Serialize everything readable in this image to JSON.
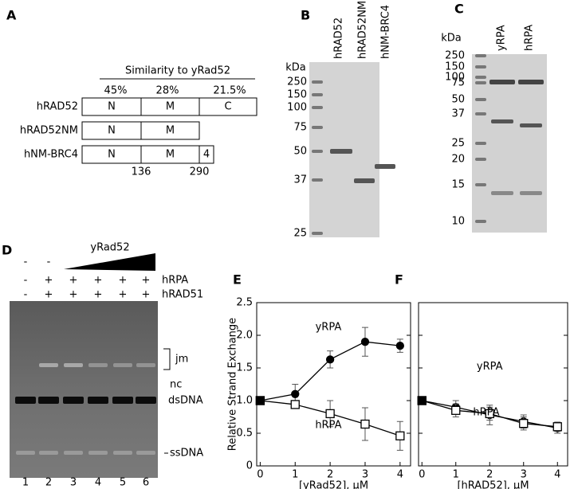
{
  "panels": {
    "a": {
      "label": "A",
      "header": "Similarity to yRad52",
      "similarity": [
        "45%",
        "28%",
        "21.5%"
      ],
      "constructs": [
        {
          "name": "hRAD52",
          "domains": [
            "N",
            "M",
            "C"
          ]
        },
        {
          "name": "hRAD52NM",
          "domains": [
            "N",
            "M"
          ]
        },
        {
          "name": "hNM-BRC4",
          "domains": [
            "N",
            "M",
            "4"
          ]
        }
      ],
      "positions": [
        "136",
        "290"
      ]
    },
    "b": {
      "label": "B",
      "unit": "kDa",
      "lanes": [
        "hRAD52",
        "hRAD52NM",
        "hNM-BRC4"
      ],
      "markers": [
        "250",
        "150",
        "100",
        "75",
        "50",
        "37",
        "25"
      ]
    },
    "c": {
      "label": "C",
      "unit": "kDa",
      "lanes": [
        "yRPA",
        "hRPA"
      ],
      "markers": [
        "250",
        "150",
        "100",
        "75",
        "50",
        "37",
        "25",
        "20",
        "15",
        "10"
      ]
    },
    "d": {
      "label": "D",
      "titrant": "yRad52",
      "titrant_signs": [
        "-",
        "-"
      ],
      "rows": [
        {
          "name": "hRPA",
          "signs": [
            "-",
            "+",
            "+",
            "+",
            "+",
            "+"
          ]
        },
        {
          "name": "hRAD51",
          "signs": [
            "-",
            "+",
            "+",
            "+",
            "+",
            "+"
          ]
        }
      ],
      "lanes": [
        "1",
        "2",
        "3",
        "4",
        "5",
        "6"
      ],
      "bands": [
        "jm",
        "nc",
        "dsDNA",
        "ssDNA"
      ]
    }
  },
  "chart_data": [
    {
      "type": "line",
      "label": "E",
      "y_label": "Relative Strand Exchange",
      "x_label": "[yRad52], μM",
      "x": [
        0,
        1,
        2,
        3,
        4
      ],
      "xlim": [
        -0.1,
        4.3
      ],
      "xticks": [
        0,
        1,
        2,
        3,
        4
      ],
      "ylim": [
        0,
        2.5
      ],
      "yticks": [
        0,
        0.5,
        {
          "value": 1,
          "label": "1.0"
        },
        1.5,
        {
          "value": 2,
          "label": "2.0"
        },
        2.5
      ],
      "series": [
        {
          "name": "yRPA",
          "color": "#000000",
          "marker": "circle",
          "filled": true,
          "values": [
            1.0,
            1.1,
            1.63,
            1.9,
            1.84
          ],
          "errors": [
            0,
            0.15,
            0.13,
            0.22,
            0.1
          ]
        },
        {
          "name": "hRPA",
          "color": "#000000",
          "marker": "square",
          "filled": false,
          "values": [
            1.0,
            0.94,
            0.8,
            0.64,
            0.46
          ],
          "errors": [
            0,
            0.05,
            0.2,
            0.25,
            0.22
          ]
        }
      ]
    },
    {
      "type": "line",
      "label": "F",
      "x_label": "[hRAD52], μM",
      "x": [
        0,
        1,
        2,
        3,
        4
      ],
      "xlim": [
        -0.1,
        4.3
      ],
      "xticks": [
        0,
        1,
        2,
        3,
        4
      ],
      "ylim": [
        0,
        2.5
      ],
      "yticks": [
        0,
        0.5,
        1,
        1.5,
        2,
        2.5
      ],
      "series": [
        {
          "name": "yRPA",
          "color": "#000000",
          "marker": "circle",
          "filled": true,
          "values": [
            1.0,
            0.9,
            0.78,
            0.68,
            0.58
          ],
          "errors": [
            0,
            0.1,
            0.15,
            0.1,
            0.08
          ]
        },
        {
          "name": "hRPA",
          "color": "#000000",
          "marker": "square",
          "filled": false,
          "values": [
            1.0,
            0.85,
            0.8,
            0.65,
            0.6
          ],
          "errors": [
            0,
            0.1,
            0.1,
            0.1,
            0.07
          ]
        }
      ]
    }
  ]
}
